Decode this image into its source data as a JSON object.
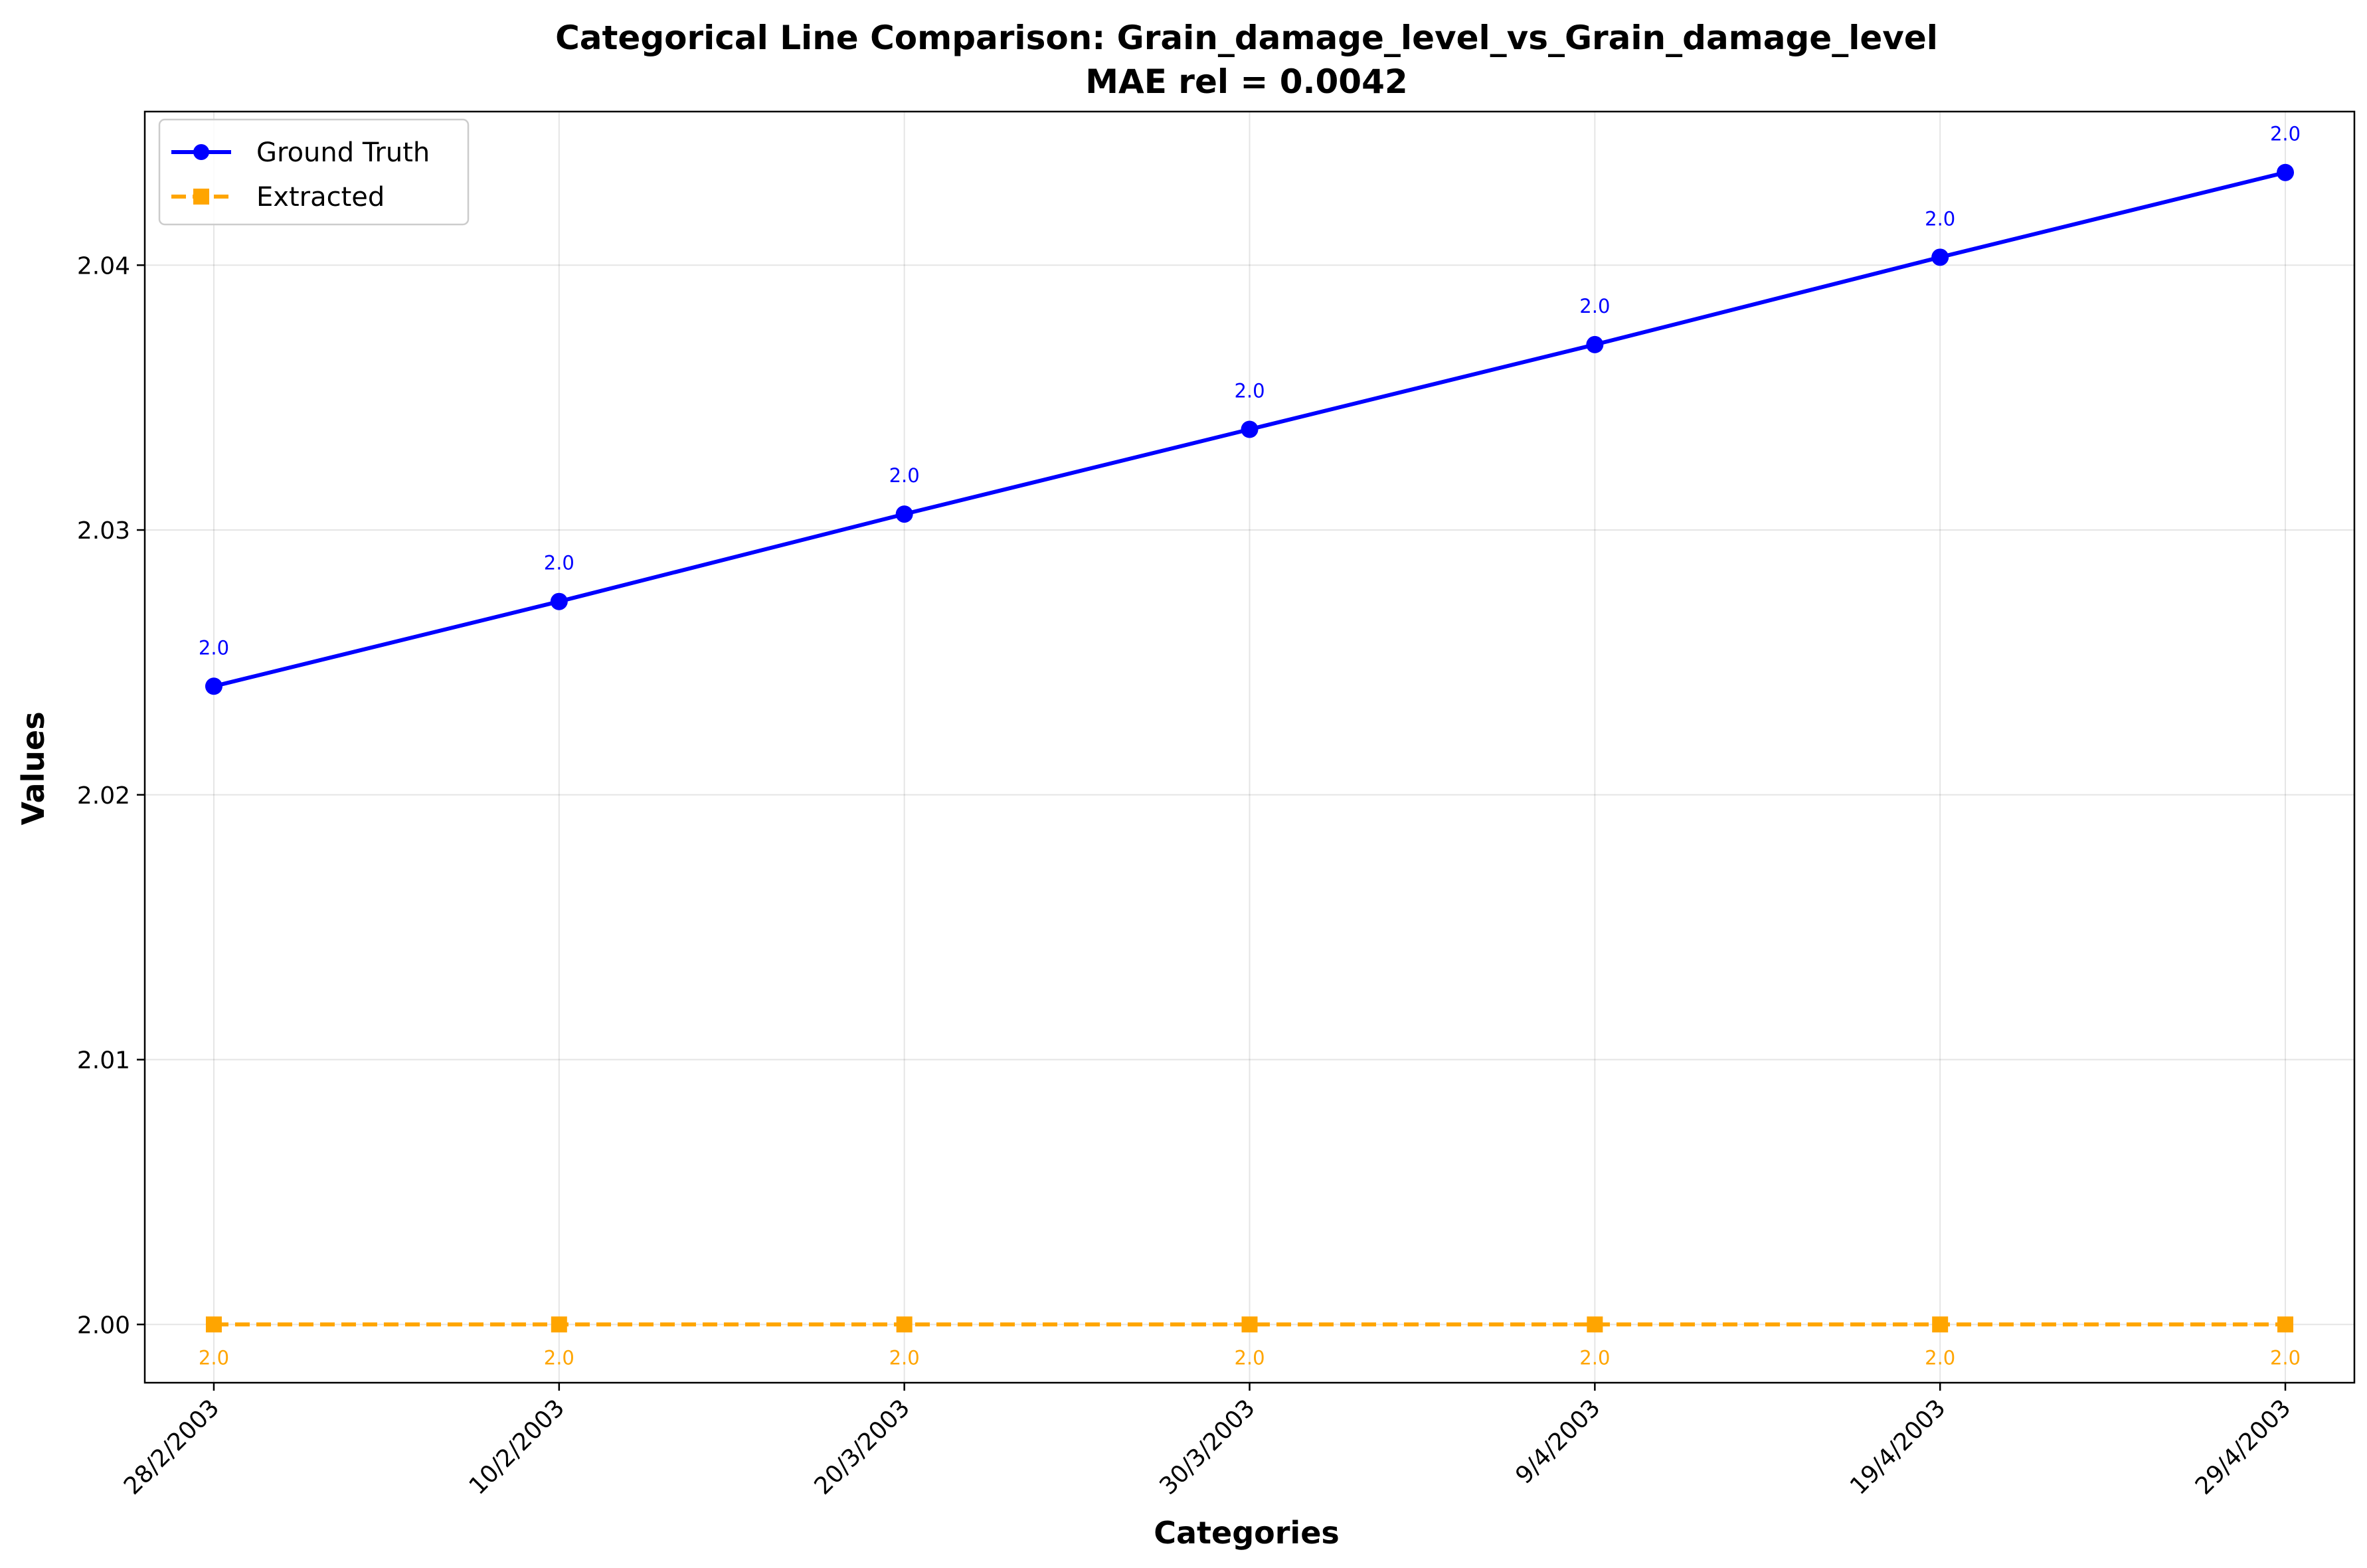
{
  "chart_data": {
    "type": "line",
    "title": "Categorical Line Comparison: Grain_damage_level_vs_Grain_damage_level",
    "subtitle": "MAE rel = 0.0042",
    "xlabel": "Categories",
    "ylabel": "Values",
    "categories": [
      "28/2/2003",
      "10/2/2003",
      "20/3/2003",
      "30/3/2003",
      "9/4/2003",
      "19/4/2003",
      "29/4/2003"
    ],
    "ylim": [
      1.9978,
      2.0458
    ],
    "yticks": [
      2.0,
      2.01,
      2.02,
      2.03,
      2.04
    ],
    "ytick_labels": [
      "2.00",
      "2.01",
      "2.02",
      "2.03",
      "2.04"
    ],
    "grid": true,
    "legend_position": "top-left",
    "series": [
      {
        "name": "Ground Truth",
        "values": [
          2.0241,
          2.0273,
          2.0306,
          2.0338,
          2.037,
          2.0403,
          2.0435
        ],
        "data_labels": [
          "2.0",
          "2.0",
          "2.0",
          "2.0",
          "2.0",
          "2.0",
          "2.0"
        ],
        "color": "#0000ff",
        "line_style": "solid",
        "marker": "circle"
      },
      {
        "name": "Extracted",
        "values": [
          2.0,
          2.0,
          2.0,
          2.0,
          2.0,
          2.0,
          2.0
        ],
        "data_labels": [
          "2.0",
          "2.0",
          "2.0",
          "2.0",
          "2.0",
          "2.0",
          "2.0"
        ],
        "color": "#ffa500",
        "line_style": "dashed",
        "marker": "square"
      }
    ]
  }
}
